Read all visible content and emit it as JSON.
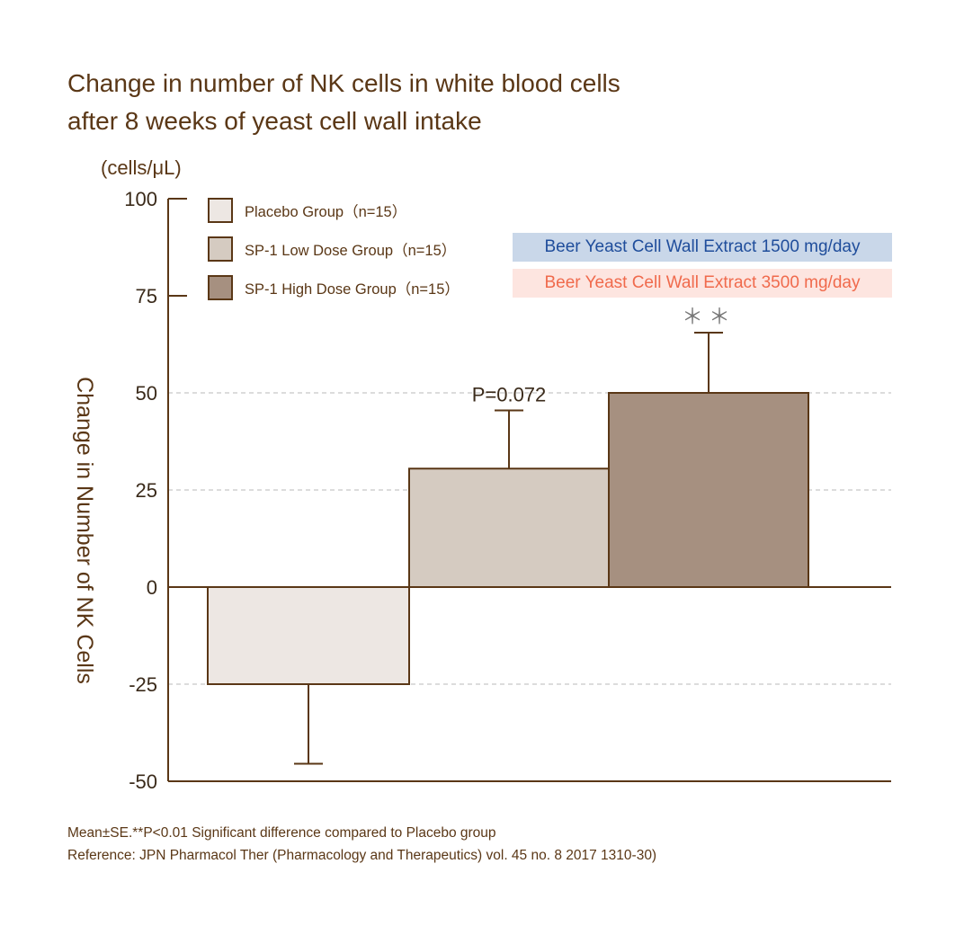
{
  "chart_data": {
    "type": "bar",
    "title_lines": [
      "Change in number of NK cells in white blood cells",
      "after 8 weeks of yeast cell wall intake"
    ],
    "unit_label": "(cells/μL)",
    "ylabel": "Change in Number of NK Cells",
    "ylim": [
      -50,
      100
    ],
    "yticks": [
      100,
      75,
      50,
      25,
      0,
      -25,
      -50
    ],
    "ytick_labels": [
      "100",
      "75",
      "50",
      "25",
      "0",
      "-25",
      "-50"
    ],
    "dashed_gridlines": [
      50,
      25,
      -25
    ],
    "categories": [
      "Placebo Group (n=15)",
      "SP-1 Low Dose Group (n=15)",
      "SP-1 High Dose Group (n=15)"
    ],
    "values": [
      -25,
      30.5,
      50
    ],
    "error_tips": [
      -45.5,
      45.5,
      65.5
    ],
    "colors": [
      "#ede7e3",
      "#d5cbc1",
      "#a69080"
    ],
    "edge_color": "#5a3716",
    "annotations": [
      "",
      "P=0.072",
      "**"
    ],
    "legend": [
      "Placebo Group（n=15）",
      "SP-1 Low Dose Group（n=15）",
      "SP-1 High Dose Group（n=15）"
    ],
    "legend_position": "top-left",
    "dose_tags": [
      "Beer Yeast Cell Wall Extract 1500 mg/day",
      "Beer Yeast Cell Wall Extract 3500 mg/day"
    ],
    "footnotes": [
      "Mean±SE.**P<0.01 Significant difference compared to Placebo group",
      "Reference: JPN Pharmacol Ther (Pharmacology and Therapeutics) vol. 45 no. 8 2017 1310-30)"
    ]
  }
}
